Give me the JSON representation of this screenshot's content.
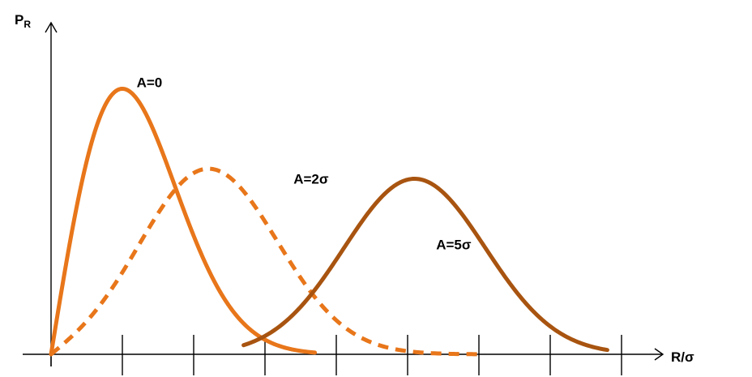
{
  "chart_data": {
    "type": "line",
    "xlabel": "R/σ",
    "ylabel": "P",
    "ylabel_subscript": "R",
    "xlim": [
      0,
      8.5
    ],
    "ylim": [
      0,
      0.65
    ],
    "grid": false,
    "tick_marks_x": [
      1,
      2,
      3,
      4,
      5,
      6,
      7,
      8
    ],
    "series": [
      {
        "name": "A=0",
        "A": 0,
        "style": "solid",
        "color": "#e8761a",
        "x_range": [
          0,
          3.7
        ],
        "label_at": [
          1.2,
          0.61
        ]
      },
      {
        "name": "A=2σ",
        "A": 2,
        "style": "dashed",
        "color": "#e8761a",
        "x_range": [
          0,
          6.0
        ],
        "label_at": [
          3.4,
          0.39
        ]
      },
      {
        "name": "A=5σ",
        "A": 5,
        "style": "solid",
        "color": "#a85410",
        "x_range": [
          2.7,
          7.8
        ],
        "label_at": [
          5.4,
          0.24
        ]
      }
    ]
  },
  "colors": {
    "axis": "#000000",
    "orange": "#e8761a",
    "brown": "#a85410"
  }
}
